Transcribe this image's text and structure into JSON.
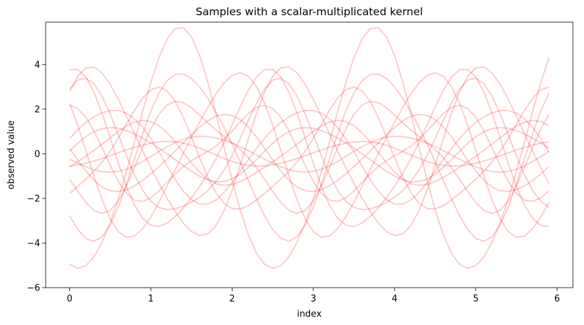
{
  "chart_data": {
    "type": "line",
    "title": "Samples with a scalar-multiplicated kernel",
    "xlabel": "index",
    "ylabel": "observed value",
    "xlim": [
      -0.295,
      6.195
    ],
    "ylim": [
      -6.0,
      5.9
    ],
    "x_ticks": [
      0,
      1,
      2,
      3,
      4,
      5,
      6
    ],
    "y_ticks": [
      -6,
      -4,
      -2,
      0,
      2,
      4
    ],
    "y_tick_labels": [
      "−6",
      "−4",
      "−2",
      "0",
      "2",
      "4"
    ],
    "grid": false,
    "line_color": "#ff0000",
    "line_alpha": 0.22,
    "x_start": 0,
    "x_step": 0.1,
    "n_points": 60,
    "period": 2.4,
    "series": [
      {
        "a": 3.44,
        "phase": 1.6,
        "h2": 0.15,
        "p2": 0.7
      },
      {
        "a": 3.6,
        "phase": 2.6,
        "h2": 0.12,
        "p2": 1.9
      },
      {
        "a": 5.4,
        "phase": 4.35,
        "h2": 0.06,
        "p2": 0.3
      },
      {
        "a": 3.7,
        "phase": 4.1,
        "h2": 0.1,
        "p2": 2.4
      },
      {
        "a": 3.7,
        "phase": 0.7,
        "h2": 0.12,
        "p2": 1.1
      },
      {
        "a": 2.9,
        "phase": 1.2,
        "h2": 0.18,
        "p2": 0.4
      },
      {
        "a": 2.1,
        "phase": 0.3,
        "h2": 0.1,
        "p2": 2.8
      },
      {
        "a": 2.6,
        "phase": 5.2,
        "h2": 0.2,
        "p2": 1.6
      },
      {
        "a": 1.9,
        "phase": 2.0,
        "h2": 0.3,
        "p2": 0.9
      },
      {
        "a": 1.7,
        "phase": 3.0,
        "h2": 0.1,
        "p2": 3.1
      },
      {
        "a": 1.4,
        "phase": 5.7,
        "h2": 0.15,
        "p2": 2.2
      },
      {
        "a": 1.2,
        "phase": 0.05,
        "h2": 0.1,
        "p2": 0.5
      },
      {
        "a": 0.8,
        "phase": 3.5,
        "h2": 0.05,
        "p2": 1.3
      },
      {
        "a": 2.3,
        "phase": 3.95,
        "h2": 0.25,
        "p2": 2.0
      },
      {
        "a": 0.55,
        "phase": 4.8,
        "h2": 0.05,
        "p2": 0.2
      }
    ]
  }
}
